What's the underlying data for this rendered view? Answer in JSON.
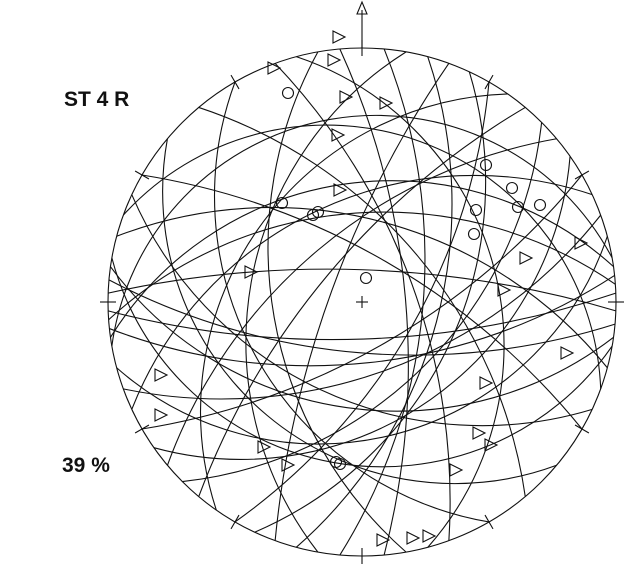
{
  "labels": {
    "station": "ST 4 R",
    "percent": "39 %"
  }
}
